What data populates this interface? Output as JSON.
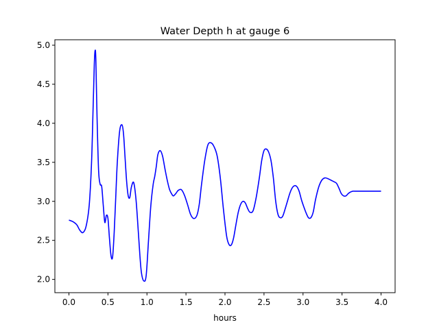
{
  "chart_data": {
    "type": "line",
    "title": "Water Depth h at gauge 6",
    "xlabel": "hours",
    "ylabel": "",
    "xlim": [
      -0.18,
      4.18
    ],
    "ylim": [
      1.83,
      5.07
    ],
    "xticks": [
      0.0,
      0.5,
      1.0,
      1.5,
      2.0,
      2.5,
      3.0,
      3.5,
      4.0
    ],
    "xtick_labels": [
      "0.0",
      "0.5",
      "1.0",
      "1.5",
      "2.0",
      "2.5",
      "3.0",
      "3.5",
      "4.0"
    ],
    "yticks": [
      2.0,
      2.5,
      3.0,
      3.5,
      4.0,
      4.5,
      5.0
    ],
    "ytick_labels": [
      "2.0",
      "2.5",
      "3.0",
      "3.5",
      "4.0",
      "4.5",
      "5.0"
    ],
    "grid": false,
    "series": [
      {
        "color": "#0000ff",
        "x": [
          0.0,
          0.05,
          0.1,
          0.14,
          0.18,
          0.22,
          0.26,
          0.29,
          0.31,
          0.325,
          0.335,
          0.345,
          0.36,
          0.38,
          0.4,
          0.42,
          0.44,
          0.46,
          0.48,
          0.5,
          0.52,
          0.54,
          0.56,
          0.58,
          0.6,
          0.62,
          0.65,
          0.68,
          0.7,
          0.72,
          0.74,
          0.76,
          0.78,
          0.8,
          0.83,
          0.86,
          0.89,
          0.91,
          0.93,
          0.96,
          0.99,
          1.02,
          1.05,
          1.08,
          1.1,
          1.12,
          1.14,
          1.17,
          1.2,
          1.23,
          1.26,
          1.29,
          1.32,
          1.34,
          1.37,
          1.4,
          1.44,
          1.48,
          1.52,
          1.56,
          1.6,
          1.64,
          1.67,
          1.7,
          1.74,
          1.78,
          1.82,
          1.86,
          1.9,
          1.94,
          1.98,
          2.02,
          2.05,
          2.08,
          2.11,
          2.14,
          2.17,
          2.2,
          2.23,
          2.26,
          2.29,
          2.32,
          2.36,
          2.4,
          2.44,
          2.47,
          2.5,
          2.53,
          2.56,
          2.59,
          2.62,
          2.65,
          2.68,
          2.71,
          2.74,
          2.77,
          2.8,
          2.83,
          2.86,
          2.89,
          2.92,
          2.95,
          2.98,
          3.01,
          3.04,
          3.07,
          3.1,
          3.13,
          3.16,
          3.2,
          3.24,
          3.28,
          3.32,
          3.36,
          3.4,
          3.43,
          3.46,
          3.49,
          3.52,
          3.55,
          3.58,
          3.61,
          3.64,
          3.67,
          3.7,
          3.74,
          3.78,
          3.82,
          3.86,
          3.9,
          3.93,
          3.96,
          3.98,
          4.0
        ],
        "y": [
          2.76,
          2.74,
          2.7,
          2.63,
          2.6,
          2.68,
          2.95,
          3.5,
          4.2,
          4.75,
          4.93,
          4.82,
          4.1,
          3.4,
          3.22,
          3.19,
          2.95,
          2.73,
          2.82,
          2.78,
          2.52,
          2.3,
          2.29,
          2.6,
          3.05,
          3.5,
          3.9,
          3.98,
          3.86,
          3.55,
          3.25,
          3.07,
          3.05,
          3.18,
          3.24,
          3.02,
          2.6,
          2.3,
          2.08,
          1.98,
          2.05,
          2.5,
          2.95,
          3.22,
          3.32,
          3.45,
          3.6,
          3.65,
          3.58,
          3.42,
          3.27,
          3.15,
          3.09,
          3.07,
          3.1,
          3.14,
          3.15,
          3.08,
          2.96,
          2.83,
          2.78,
          2.82,
          2.96,
          3.22,
          3.52,
          3.72,
          3.75,
          3.7,
          3.58,
          3.3,
          2.9,
          2.56,
          2.45,
          2.44,
          2.53,
          2.7,
          2.86,
          2.96,
          3.0,
          2.98,
          2.91,
          2.86,
          2.88,
          3.05,
          3.3,
          3.52,
          3.65,
          3.67,
          3.63,
          3.52,
          3.3,
          3.0,
          2.83,
          2.79,
          2.81,
          2.9,
          3.0,
          3.1,
          3.17,
          3.2,
          3.19,
          3.13,
          3.02,
          2.93,
          2.85,
          2.79,
          2.79,
          2.86,
          3.02,
          3.18,
          3.27,
          3.3,
          3.29,
          3.27,
          3.25,
          3.23,
          3.17,
          3.1,
          3.07,
          3.07,
          3.1,
          3.12,
          3.13,
          3.13,
          3.13,
          3.13,
          3.13,
          3.13,
          3.13,
          3.13,
          3.13,
          3.13,
          3.13,
          3.13
        ]
      }
    ]
  }
}
